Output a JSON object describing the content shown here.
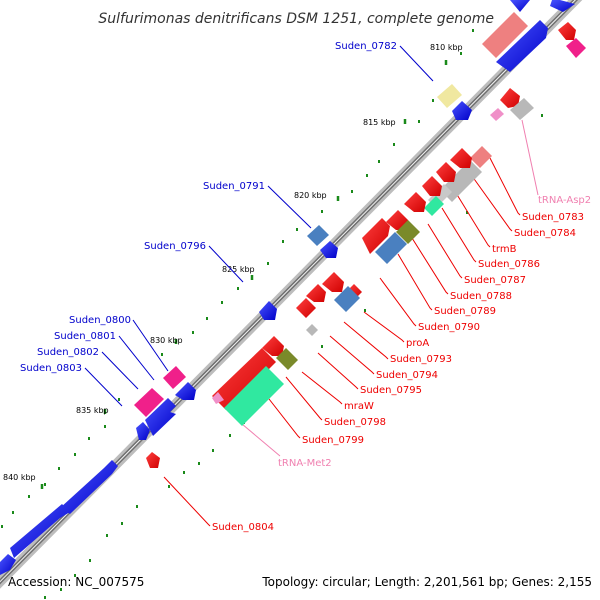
{
  "title": "Sulfurimonas denitrificans DSM 1251, complete genome",
  "footer": {
    "accession": "Accession: NC_007575",
    "topology": "Topology: circular; Length: 2,201,561 bp; Genes: 2,155"
  },
  "scale": {
    "ticks": [
      "810 kbp",
      "815 kbp",
      "820 kbp",
      "825 kbp",
      "830 kbp",
      "835 kbp",
      "840 kbp"
    ]
  },
  "colors": {
    "plus_strand_blue": "#0a14e0",
    "minus_strand_red": "#ee0000",
    "tRNA_label": "#f080b0",
    "steelblue": "#4a80c0",
    "olive": "#7a8a2a",
    "pink": "#f0208a",
    "grey": "#b8b8b8",
    "mint": "#30e8a0",
    "salmon": "#ee8080",
    "yellow": "#f0e8a0",
    "backbone": "#777777",
    "tick_green": "#1a8a1a"
  },
  "labels": {
    "blue": [
      "Suden_0782",
      "Suden_0791",
      "Suden_0796",
      "Suden_0800",
      "Suden_0801",
      "Suden_0802",
      "Suden_0803"
    ],
    "red": [
      "Suden_0783",
      "Suden_0784",
      "trmB",
      "Suden_0786",
      "Suden_0787",
      "Suden_0788",
      "Suden_0789",
      "Suden_0790",
      "proA",
      "Suden_0793",
      "Suden_0794",
      "Suden_0795",
      "mraW",
      "Suden_0798",
      "Suden_0799",
      "Suden_0804"
    ],
    "trna": [
      "tRNA-Asp2",
      "tRNA-Met2"
    ]
  }
}
